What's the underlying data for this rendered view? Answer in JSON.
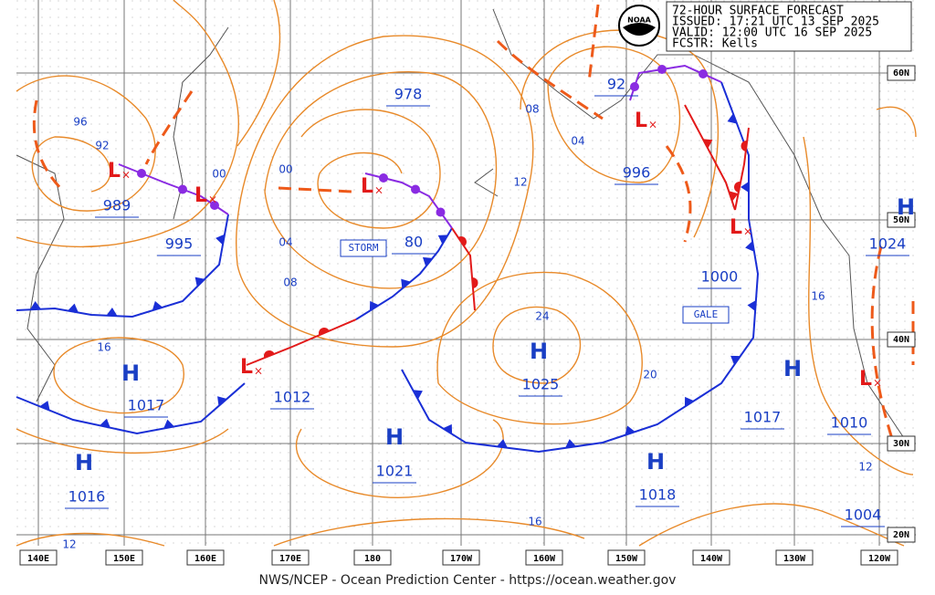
{
  "header": {
    "lines": [
      "72-HOUR SURFACE FORECAST",
      "ISSUED: 17:21 UTC 13 SEP 2025",
      "VALID:  12:00 UTC 16 SEP 2025",
      "FCSTR:  Kells"
    ],
    "logo": "NOAA"
  },
  "longitude_labels": [
    "140E",
    "150E",
    "160E",
    "170E",
    "180",
    "170W",
    "160W",
    "150W",
    "140W",
    "130W",
    "120W"
  ],
  "latitude_labels": [
    "60N",
    "50N",
    "40N",
    "30N",
    "20N"
  ],
  "high_symbols": [
    "H",
    "H",
    "H",
    "H",
    "H",
    "H",
    "H"
  ],
  "low_symbols": [
    "L",
    "L",
    "L",
    "L",
    "L",
    "L",
    "L"
  ],
  "pressure_values": [
    "989",
    "995",
    "978",
    "80",
    "996",
    "92",
    "1000",
    "1024",
    "1017",
    "1012",
    "1025",
    "1021",
    "1018",
    "1017",
    "1010",
    "1004",
    "1016"
  ],
  "isobar_labels": [
    "96",
    "92",
    "00",
    "00",
    "04",
    "08",
    "08",
    "04",
    "12",
    "24",
    "20",
    "16",
    "16",
    "12",
    "16",
    "12"
  ],
  "warnings": [
    "STORM",
    "GALE"
  ],
  "footer": "NWS/NCEP - Ocean Prediction Center - https://ocean.weather.gov"
}
